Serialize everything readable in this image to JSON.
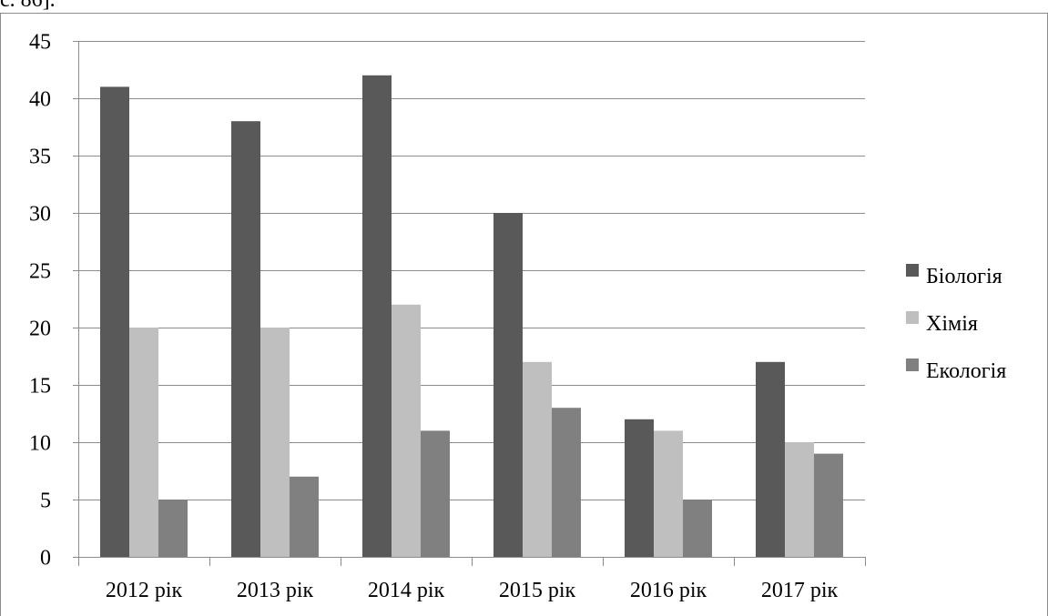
{
  "page": {
    "top_text": "с. 86]."
  },
  "colors": {
    "background": "#ffffff",
    "gridline": "#8c8c8c",
    "axis": "#8c8c8c",
    "series": [
      "#595959",
      "#bfbfbf",
      "#808080"
    ]
  },
  "chart_data": {
    "type": "bar",
    "title": "",
    "xlabel": "",
    "ylabel": "",
    "categories": [
      "2012 рік",
      "2013 рік",
      "2014 рік",
      "2015 рік",
      "2016 рік",
      "2017 рік"
    ],
    "series": [
      {
        "name": "Біологія",
        "values": [
          41,
          38,
          42,
          30,
          12,
          17
        ]
      },
      {
        "name": "Хімія",
        "values": [
          20,
          20,
          22,
          17,
          11,
          10
        ]
      },
      {
        "name": "Екологія",
        "values": [
          5,
          7,
          11,
          13,
          5,
          9
        ]
      }
    ],
    "ylim": [
      0,
      45
    ],
    "yticks": [
      0,
      5,
      10,
      15,
      20,
      25,
      30,
      35,
      40,
      45
    ],
    "grid": true,
    "legend_position": "right"
  }
}
